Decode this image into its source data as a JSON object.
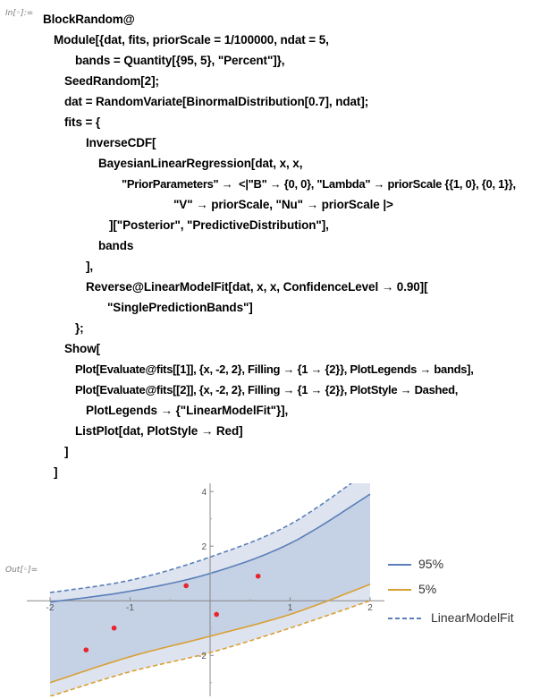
{
  "cell": {
    "in_label": "In[◦]:=",
    "out_label": "Out[◦]="
  },
  "code_lines": [
    "BlockRandom@",
    "Module[{dat, fits, priorScale = 1/100000, ndat = 5,",
    "bands = Quantity[{95, 5}, \"Percent\"]},",
    "SeedRandom[2];",
    "dat = RandomVariate[BinormalDistribution[0.7], ndat];",
    "fits = {",
    "InverseCDF[",
    "BayesianLinearRegression[dat, x, x,",
    "\"PriorParameters\" →  <|\"B\" → {0, 0}, \"Lambda\" → priorScale {{1, 0}, {0, 1}},",
    "\"V\" → priorScale, \"Nu\" → priorScale |>",
    "][\"Posterior\", \"PredictiveDistribution\"],",
    "bands",
    "],",
    "Reverse@LinearModelFit[dat, x, x, ConfidenceLevel → 0.90][",
    "\"SinglePredictionBands\"]",
    "};",
    "Show[",
    "Plot[Evaluate@fits[[1]], {x, -2, 2}, Filling → {1 → {2}}, PlotLegends → bands],",
    "Plot[Evaluate@fits[[2]], {x, -2, 2}, Filling → {1 → {2}}, PlotStyle → Dashed,",
    "PlotLegends → {\"LinearModelFit\"}],",
    "ListPlot[dat, PlotStyle → Red]",
    "]",
    "]"
  ],
  "chart_data": {
    "type": "line",
    "xlim": [
      -2,
      2
    ],
    "ylim": [
      -3.5,
      4.3
    ],
    "x_ticks": [
      "-2",
      "-1",
      "1",
      "2"
    ],
    "y_ticks": [
      "-2",
      "2",
      "4"
    ],
    "series": [
      {
        "name": "95%",
        "color": "#5b7fb8",
        "style": "solid",
        "x": [
          -2,
          -1,
          0,
          1,
          2
        ],
        "values": [
          -0.05,
          0.35,
          1.0,
          2.1,
          3.9
        ]
      },
      {
        "name": "5%",
        "color": "#d9a033",
        "style": "solid",
        "x": [
          -2,
          -1,
          0,
          1,
          2
        ],
        "values": [
          -3.0,
          -2.05,
          -1.3,
          -0.5,
          0.6
        ]
      },
      {
        "name": "LinearModelFit",
        "color": "#5b7fb8",
        "style": "dashed",
        "x": [
          -2,
          -1,
          0,
          1,
          2
        ],
        "values": [
          0.3,
          0.75,
          1.6,
          2.8,
          4.8
        ]
      },
      {
        "name": "",
        "color": "#d9a033",
        "style": "dashed",
        "x": [
          -2,
          -1,
          0,
          1,
          2
        ],
        "values": [
          -3.5,
          -2.6,
          -1.9,
          -1.0,
          0.0
        ]
      }
    ],
    "points": {
      "color": "#e8242c",
      "x": [
        -1.55,
        -1.2,
        -0.3,
        0.08,
        0.6
      ],
      "y": [
        -1.8,
        -1.0,
        0.55,
        -0.5,
        0.9
      ]
    },
    "legend": [
      "95%",
      "5%",
      "LinearModelFit"
    ],
    "legend_placement": "right"
  }
}
